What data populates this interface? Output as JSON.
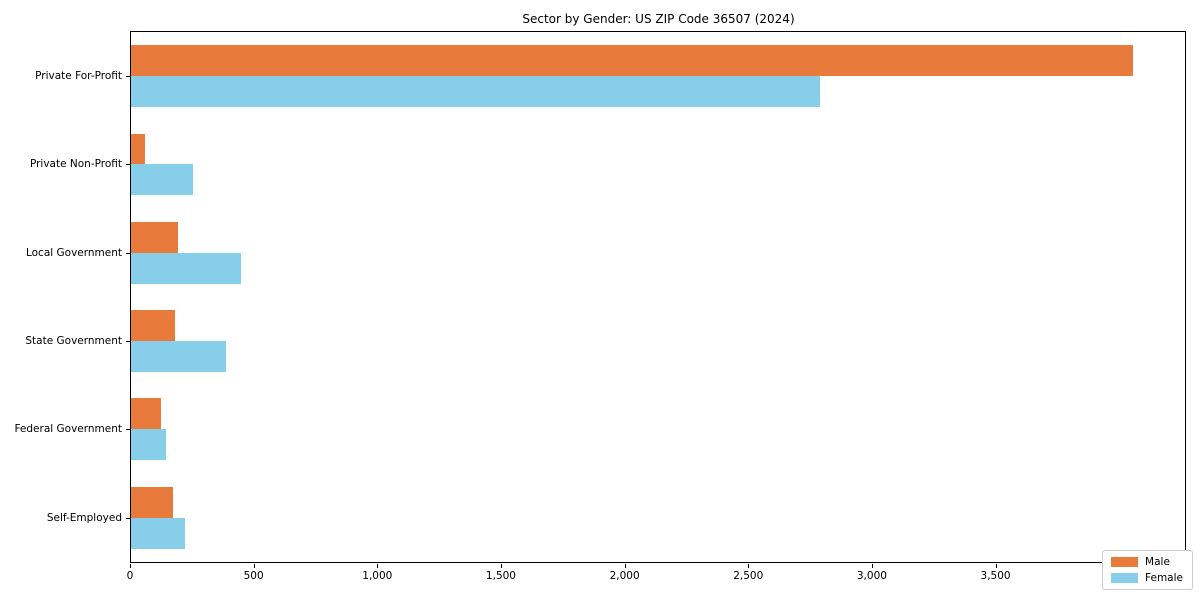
{
  "chart_data": {
    "type": "bar",
    "orientation": "horizontal",
    "title": "Sector by Gender: US ZIP Code 36507 (2024)",
    "categories": [
      "Private For-Profit",
      "Private Non-Profit",
      "Local Government",
      "State Government",
      "Federal Government",
      "Self-Employed"
    ],
    "series": [
      {
        "name": "Male",
        "color": "#e87a3c",
        "values": [
          4060,
          55,
          190,
          180,
          120,
          170
        ]
      },
      {
        "name": "Female",
        "color": "#87ceeb",
        "values": [
          2790,
          250,
          445,
          385,
          140,
          220
        ]
      }
    ],
    "xlabel": "",
    "ylabel": "",
    "xlim": [
      0,
      4270
    ],
    "xticks": [
      0,
      500,
      1000,
      1500,
      2000,
      2500,
      3000,
      3500,
      4000
    ],
    "xtick_labels": [
      "0",
      "500",
      "1,000",
      "1,500",
      "2,000",
      "2,500",
      "3,000",
      "3,500",
      "4,000"
    ],
    "grid": false,
    "legend_position": "lower right"
  }
}
